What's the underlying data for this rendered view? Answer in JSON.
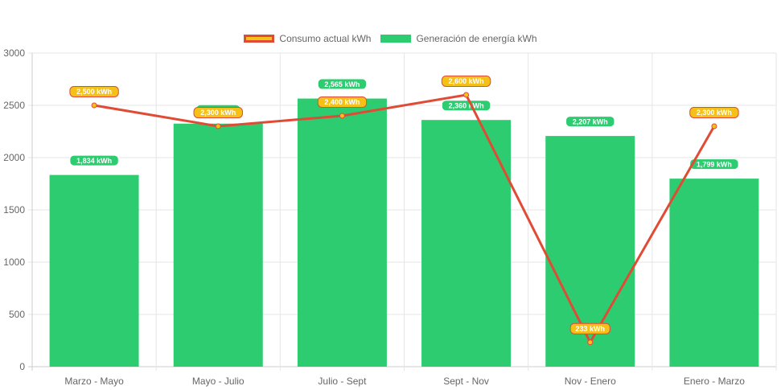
{
  "colors": {
    "consumo_fill": "#f5c118",
    "consumo_line": "#e04b35",
    "generacion": "#2ecc71",
    "grid": "#e6e6e6",
    "axis_text": "#666666"
  },
  "legend": {
    "consumo": "Consumo actual kWh",
    "generacion": "Generación de energía kWh"
  },
  "chart_data": {
    "type": "bar",
    "title": "",
    "xlabel": "",
    "ylabel": "",
    "ylim": [
      0,
      3000
    ],
    "yticks": [
      "0",
      "500",
      "1000",
      "1500",
      "2000",
      "2500",
      "3000"
    ],
    "ytick_values": [
      0,
      500,
      1000,
      1500,
      2000,
      2500,
      3000
    ],
    "categories": [
      "Marzo - Mayo",
      "Mayo - Julio",
      "Julio - Sept",
      "Sept - Nov",
      "Nov - Enero",
      "Enero - Marzo"
    ],
    "series": [
      {
        "name": "Generación de energía kWh",
        "type": "bar",
        "values": [
          1834,
          2325,
          2565,
          2360,
          2207,
          1799
        ],
        "labels": [
          "1,834 kWh",
          "",
          "2,565 kWh",
          "2,360 kWh",
          "2,207 kWh",
          "1,799 kWh"
        ]
      },
      {
        "name": "Consumo actual kWh",
        "type": "line",
        "values": [
          2500,
          2300,
          2400,
          2600,
          233,
          2300
        ],
        "labels": [
          "2,500 kWh",
          "2,300 kWh",
          "2,400 kWh",
          "2,600 kWh",
          "233 kWh",
          "2,300 kWh"
        ]
      }
    ]
  }
}
